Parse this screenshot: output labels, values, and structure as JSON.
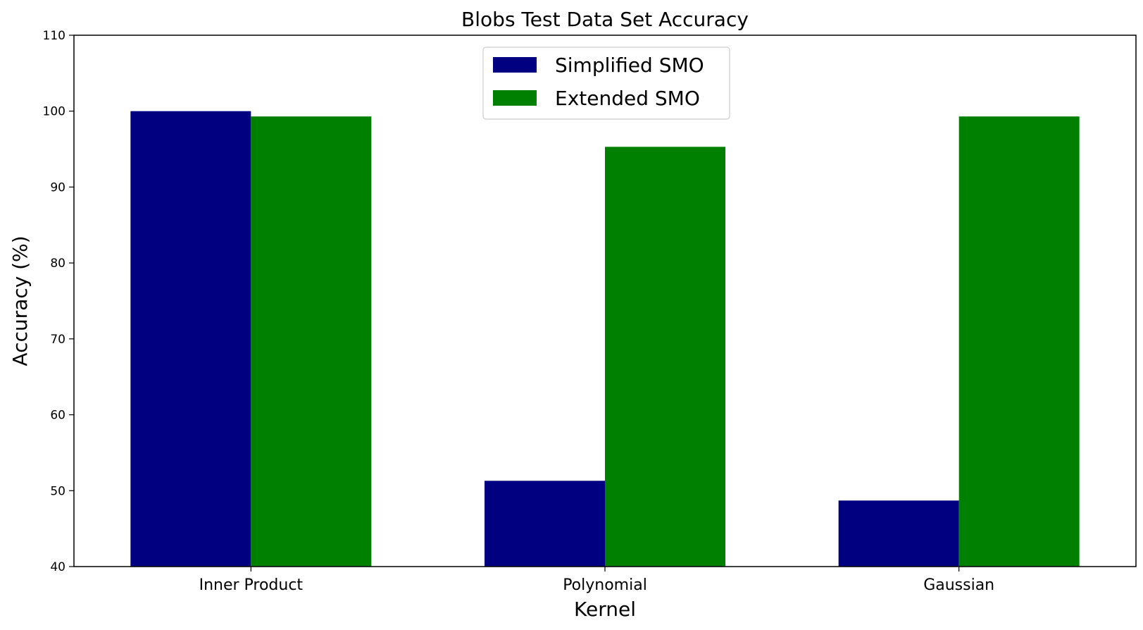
{
  "chart_data": {
    "type": "bar",
    "title": "Blobs Test Data Set Accuracy",
    "xlabel": "Kernel",
    "ylabel": "Accuracy (%)",
    "categories": [
      "Inner Product",
      "Polynomial",
      "Gaussian"
    ],
    "series": [
      {
        "name": "Simplified SMO",
        "color": "#000080",
        "values": [
          100.0,
          51.3,
          48.7
        ]
      },
      {
        "name": "Extended SMO",
        "color": "#008000",
        "values": [
          99.3,
          95.3,
          99.3
        ]
      }
    ],
    "ylim": [
      40,
      110
    ],
    "yticks": [
      40,
      50,
      60,
      70,
      80,
      90,
      100,
      110
    ],
    "grid": false,
    "legend_position": "upper center"
  }
}
